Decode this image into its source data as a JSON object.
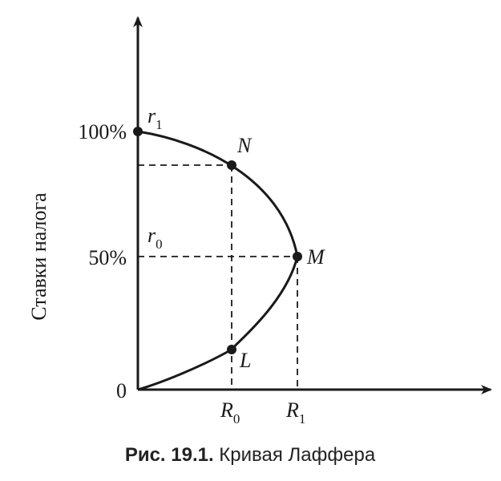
{
  "figure": {
    "y_axis_label": "Ставки налога",
    "y_ticks": {
      "t100": "100%",
      "t50": "50%",
      "t0": "0"
    },
    "x_ticks": {
      "R0": {
        "main": "R",
        "sub": "0"
      },
      "R1": {
        "main": "R",
        "sub": "1"
      }
    },
    "rate_labels": {
      "r1": {
        "main": "r",
        "sub": "1"
      },
      "r0": {
        "main": "r",
        "sub": "0"
      }
    },
    "points": {
      "N": "N",
      "M": "M",
      "L": "L"
    },
    "caption": {
      "prefix": "Рис. 19.1.",
      "text": " Кривая Лаффера"
    }
  }
}
